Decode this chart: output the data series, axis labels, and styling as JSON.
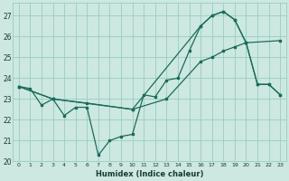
{
  "xlabel": "Humidex (Indice chaleur)",
  "background_color": "#cce8e0",
  "grid_color": "#99ccc4",
  "line_color": "#1a6b5a",
  "xlim": [
    -0.5,
    23.5
  ],
  "ylim": [
    20.0,
    27.6
  ],
  "yticks": [
    20,
    21,
    22,
    23,
    24,
    25,
    26,
    27
  ],
  "xticks": [
    0,
    1,
    2,
    3,
    4,
    5,
    6,
    7,
    8,
    9,
    10,
    11,
    12,
    13,
    14,
    15,
    16,
    17,
    18,
    19,
    20,
    21,
    22,
    23
  ],
  "line1_x": [
    0,
    1,
    2,
    3,
    4,
    5,
    6,
    7,
    8,
    9,
    10,
    11,
    12,
    13,
    14,
    15,
    16,
    17,
    18,
    19,
    20,
    21,
    22,
    23
  ],
  "line1_y": [
    23.6,
    23.5,
    22.7,
    23.0,
    22.2,
    22.6,
    22.6,
    20.3,
    21.0,
    21.2,
    21.3,
    23.2,
    23.1,
    23.9,
    24.0,
    25.3,
    26.5,
    27.0,
    27.2,
    26.8,
    25.7,
    23.7,
    23.7,
    23.2
  ],
  "line2_x": [
    0,
    3,
    6,
    10,
    13,
    16,
    17,
    18,
    19,
    20,
    23
  ],
  "line2_y": [
    23.6,
    23.0,
    22.8,
    22.5,
    23.0,
    24.8,
    25.0,
    25.3,
    25.5,
    25.7,
    25.8
  ],
  "line3_x": [
    0,
    3,
    10,
    16,
    17,
    18,
    19,
    20,
    21,
    22,
    23
  ],
  "line3_y": [
    23.6,
    23.0,
    22.5,
    26.5,
    27.0,
    27.2,
    26.8,
    25.7,
    23.7,
    23.7,
    23.2
  ]
}
